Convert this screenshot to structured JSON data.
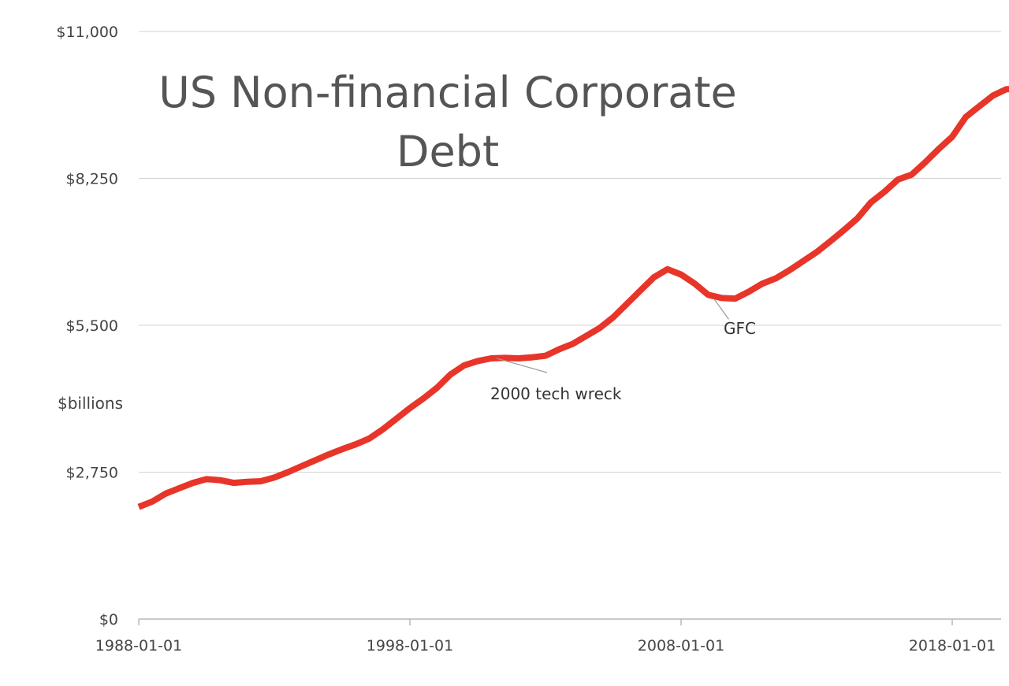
{
  "chart_data": {
    "type": "line",
    "title_lines": [
      "US Non-financial Corporate",
      "Debt"
    ],
    "ylabel": "$billions",
    "xlabel": "",
    "ylim": [
      0,
      11000
    ],
    "y_ticks": [
      {
        "value": 0,
        "label": "$0"
      },
      {
        "value": 2750,
        "label": "$2,750"
      },
      {
        "value": 5500,
        "label": "$5,500"
      },
      {
        "value": 8250,
        "label": "$8,250"
      },
      {
        "value": 11000,
        "label": "$11,000"
      }
    ],
    "x_ticks": [
      {
        "value": 1988,
        "label": "1988-01-01"
      },
      {
        "value": 1998,
        "label": "1998-01-01"
      },
      {
        "value": 2008,
        "label": "2008-01-01"
      },
      {
        "value": 2018,
        "label": "2018-01-01"
      }
    ],
    "grid": true,
    "line_color": "#e8352a",
    "series": [
      {
        "x": [
          1988.0,
          1988.5,
          1989.0,
          1989.5,
          1990.0,
          1990.5,
          1991.0,
          1991.5,
          1992.0,
          1992.5,
          1993.0,
          1993.5,
          1994.0,
          1994.5,
          1995.0,
          1995.5,
          1996.0,
          1996.5,
          1997.0,
          1997.5,
          1998.0,
          1998.5,
          1999.0,
          1999.5,
          2000.0,
          2000.5,
          2001.0,
          2001.5,
          2002.0,
          2002.5,
          2003.0,
          2003.5,
          2004.0,
          2004.5,
          2005.0,
          2005.5,
          2006.0,
          2006.5,
          2007.0,
          2007.5,
          2008.0,
          2008.5,
          2009.0,
          2009.5,
          2010.0,
          2010.5,
          2011.0,
          2011.5,
          2012.0,
          2012.5,
          2013.0,
          2013.5,
          2014.0,
          2014.5,
          2015.0,
          2015.5,
          2016.0,
          2016.5,
          2017.0,
          2017.5,
          2018.0,
          2018.5,
          2019.0,
          2019.5,
          2020.0,
          2020.3
        ],
        "y": [
          2100,
          2200,
          2350,
          2450,
          2550,
          2620,
          2600,
          2550,
          2570,
          2580,
          2650,
          2750,
          2860,
          2970,
          3080,
          3180,
          3270,
          3380,
          3550,
          3750,
          3950,
          4130,
          4330,
          4580,
          4750,
          4830,
          4880,
          4890,
          4880,
          4900,
          4930,
          5050,
          5150,
          5300,
          5450,
          5650,
          5900,
          6150,
          6400,
          6550,
          6450,
          6280,
          6070,
          6010,
          6000,
          6130,
          6280,
          6380,
          6530,
          6700,
          6870,
          7070,
          7280,
          7500,
          7800,
          8000,
          8230,
          8320,
          8550,
          8800,
          9030,
          9400,
          9600,
          9800,
          9920,
          9920
        ]
      }
    ],
    "annotations": [
      {
        "text": "2000 tech wreck",
        "x": 2001.2,
        "y": 4880
      },
      {
        "text": "GFC",
        "x": 2009.7,
        "y": 6010
      }
    ]
  }
}
